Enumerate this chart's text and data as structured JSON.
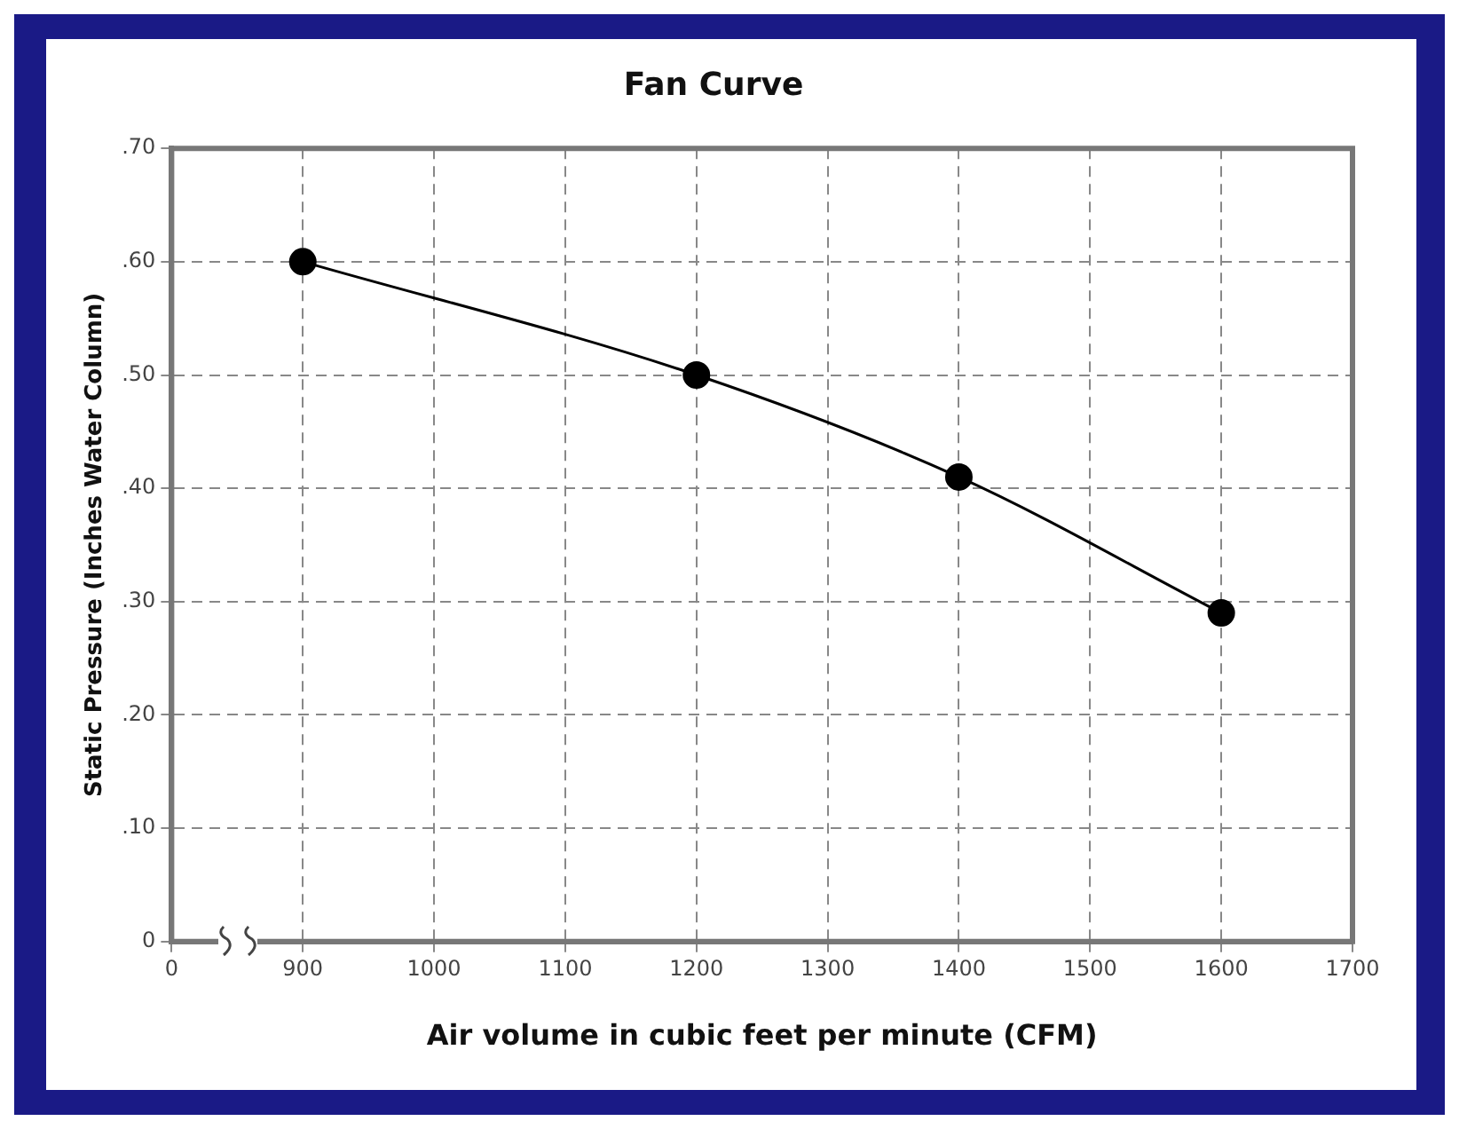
{
  "chart_data": {
    "type": "line",
    "title": "Fan Curve",
    "xlabel": "Air volume in cubic feet per minute (CFM)",
    "ylabel": "Static Pressure (Inches Water Column)",
    "categories": [
      "0",
      "900",
      "1000",
      "1100",
      "1200",
      "1300",
      "1400",
      "1500",
      "1600",
      "1700"
    ],
    "series": [
      {
        "color": "#000000",
        "values": [
          null,
          0.6,
          null,
          null,
          0.5,
          null,
          0.41,
          null,
          0.29,
          null
        ]
      }
    ],
    "ylim": [
      0,
      0.7
    ],
    "yticks": [
      0,
      {
        "value": 0.1,
        "label": ".10"
      },
      {
        "value": 0.2,
        "label": ".20"
      },
      {
        "value": 0.3,
        "label": ".30"
      },
      {
        "value": 0.4,
        "label": ".40"
      },
      {
        "value": 0.5,
        "label": ".50"
      },
      {
        "value": 0.6,
        "label": ".60"
      },
      {
        "value": 0.7,
        "label": ".70"
      }
    ],
    "grid": true,
    "legend": false,
    "marker": "circle",
    "line_style": "solid"
  }
}
